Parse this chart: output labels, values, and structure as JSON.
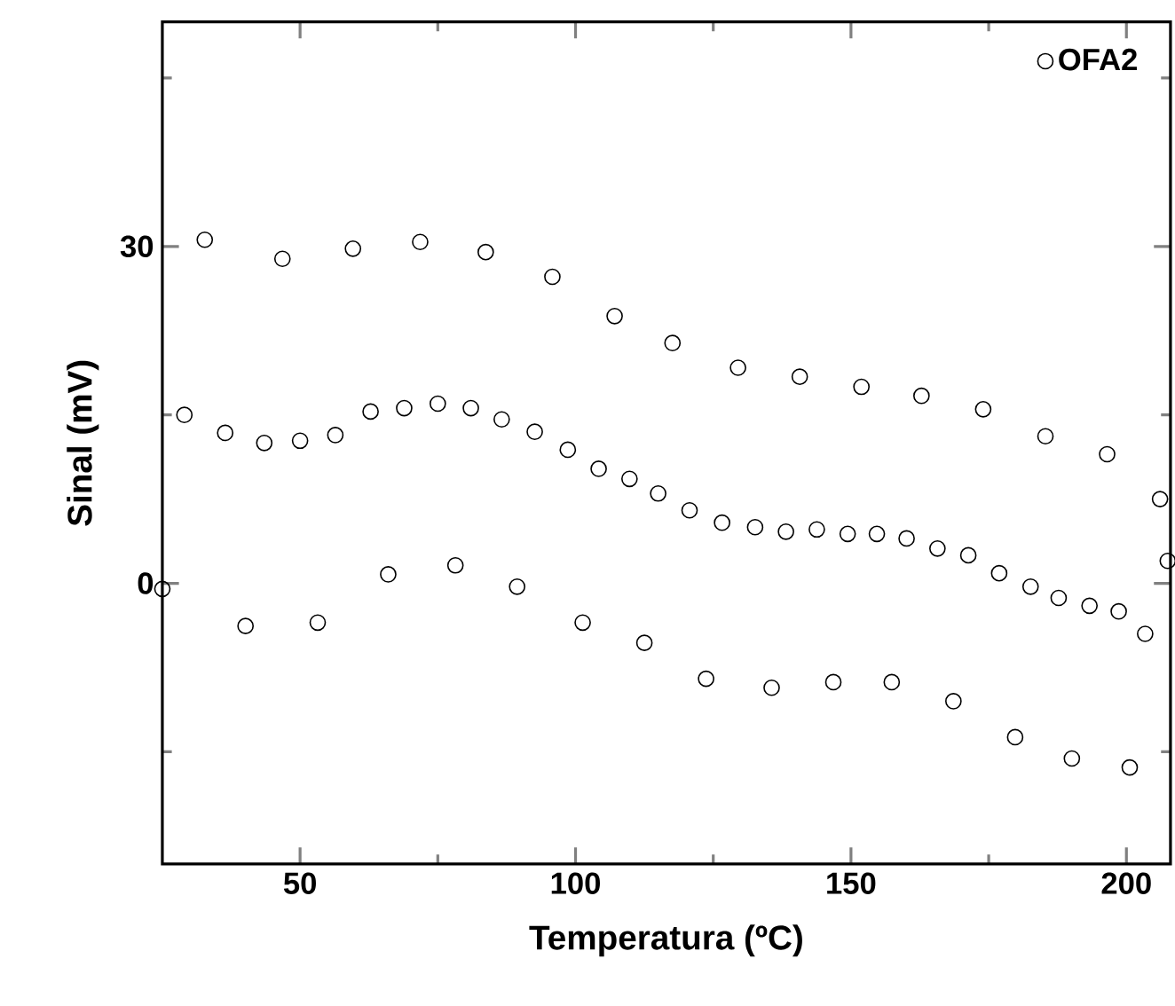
{
  "chart_data": {
    "type": "scatter",
    "xlabel": "Temperatura (ºC)",
    "ylabel": "Sinal (mV)",
    "xlim": [
      25,
      208
    ],
    "ylim": [
      -25,
      50
    ],
    "xticks": [
      50,
      {
        "value": 75,
        "label": null
      },
      100,
      {
        "value": 125,
        "label": null
      },
      150,
      {
        "value": 175,
        "label": null
      },
      200
    ],
    "yticks": [
      {
        "value": -15,
        "label": null
      },
      0,
      {
        "value": 15,
        "label": null
      },
      30,
      {
        "value": 45,
        "label": null
      }
    ],
    "legend": "top right",
    "marker": "circle",
    "grid": false,
    "series": [
      {
        "name": "OFA2",
        "color": "#000000",
        "x": [
          25,
          29,
          32.7,
          36.4,
          40.1,
          43.5,
          46.8,
          50,
          53.2,
          56.4,
          59.6,
          62.8,
          66.0,
          68.9,
          71.8,
          75,
          78.2,
          81,
          83.7,
          86.6,
          89.4,
          92.6,
          95.8,
          98.6,
          101.3,
          104.2,
          107.1,
          109.8,
          112.5,
          115,
          117.6,
          120.7,
          123.7,
          126.6,
          129.5,
          132.6,
          135.6,
          138.2,
          140.7,
          143.8,
          146.8,
          149.4,
          151.9,
          154.7,
          157.4,
          160.1,
          162.8,
          165.7,
          168.6,
          171.3,
          174.0,
          176.9,
          179.8,
          182.6,
          185.3,
          187.7,
          190.1,
          193.3,
          196.5,
          198.6,
          200.6,
          203.4,
          206.1,
          207.5
        ],
        "values": [
          -0.5,
          15,
          30.6,
          13.4,
          -3.8,
          12.5,
          28.9,
          12.7,
          -3.5,
          13.2,
          29.8,
          15.3,
          0.8,
          15.6,
          30.4,
          16,
          1.6,
          15.6,
          29.5,
          14.6,
          -0.3,
          13.5,
          27.3,
          11.9,
          -3.5,
          10.2,
          23.8,
          9.3,
          -5.3,
          8,
          21.4,
          6.5,
          -8.5,
          5.4,
          19.2,
          5,
          -9.3,
          4.6,
          18.4,
          4.8,
          -8.8,
          4.4,
          17.5,
          4.4,
          -8.8,
          4,
          16.7,
          3.1,
          -10.5,
          2.5,
          15.5,
          0.9,
          -13.7,
          -0.3,
          13.1,
          -1.3,
          -15.6,
          -2,
          11.5,
          -2.5,
          -16.4,
          -4.5,
          7.5,
          2
        ]
      }
    ]
  }
}
